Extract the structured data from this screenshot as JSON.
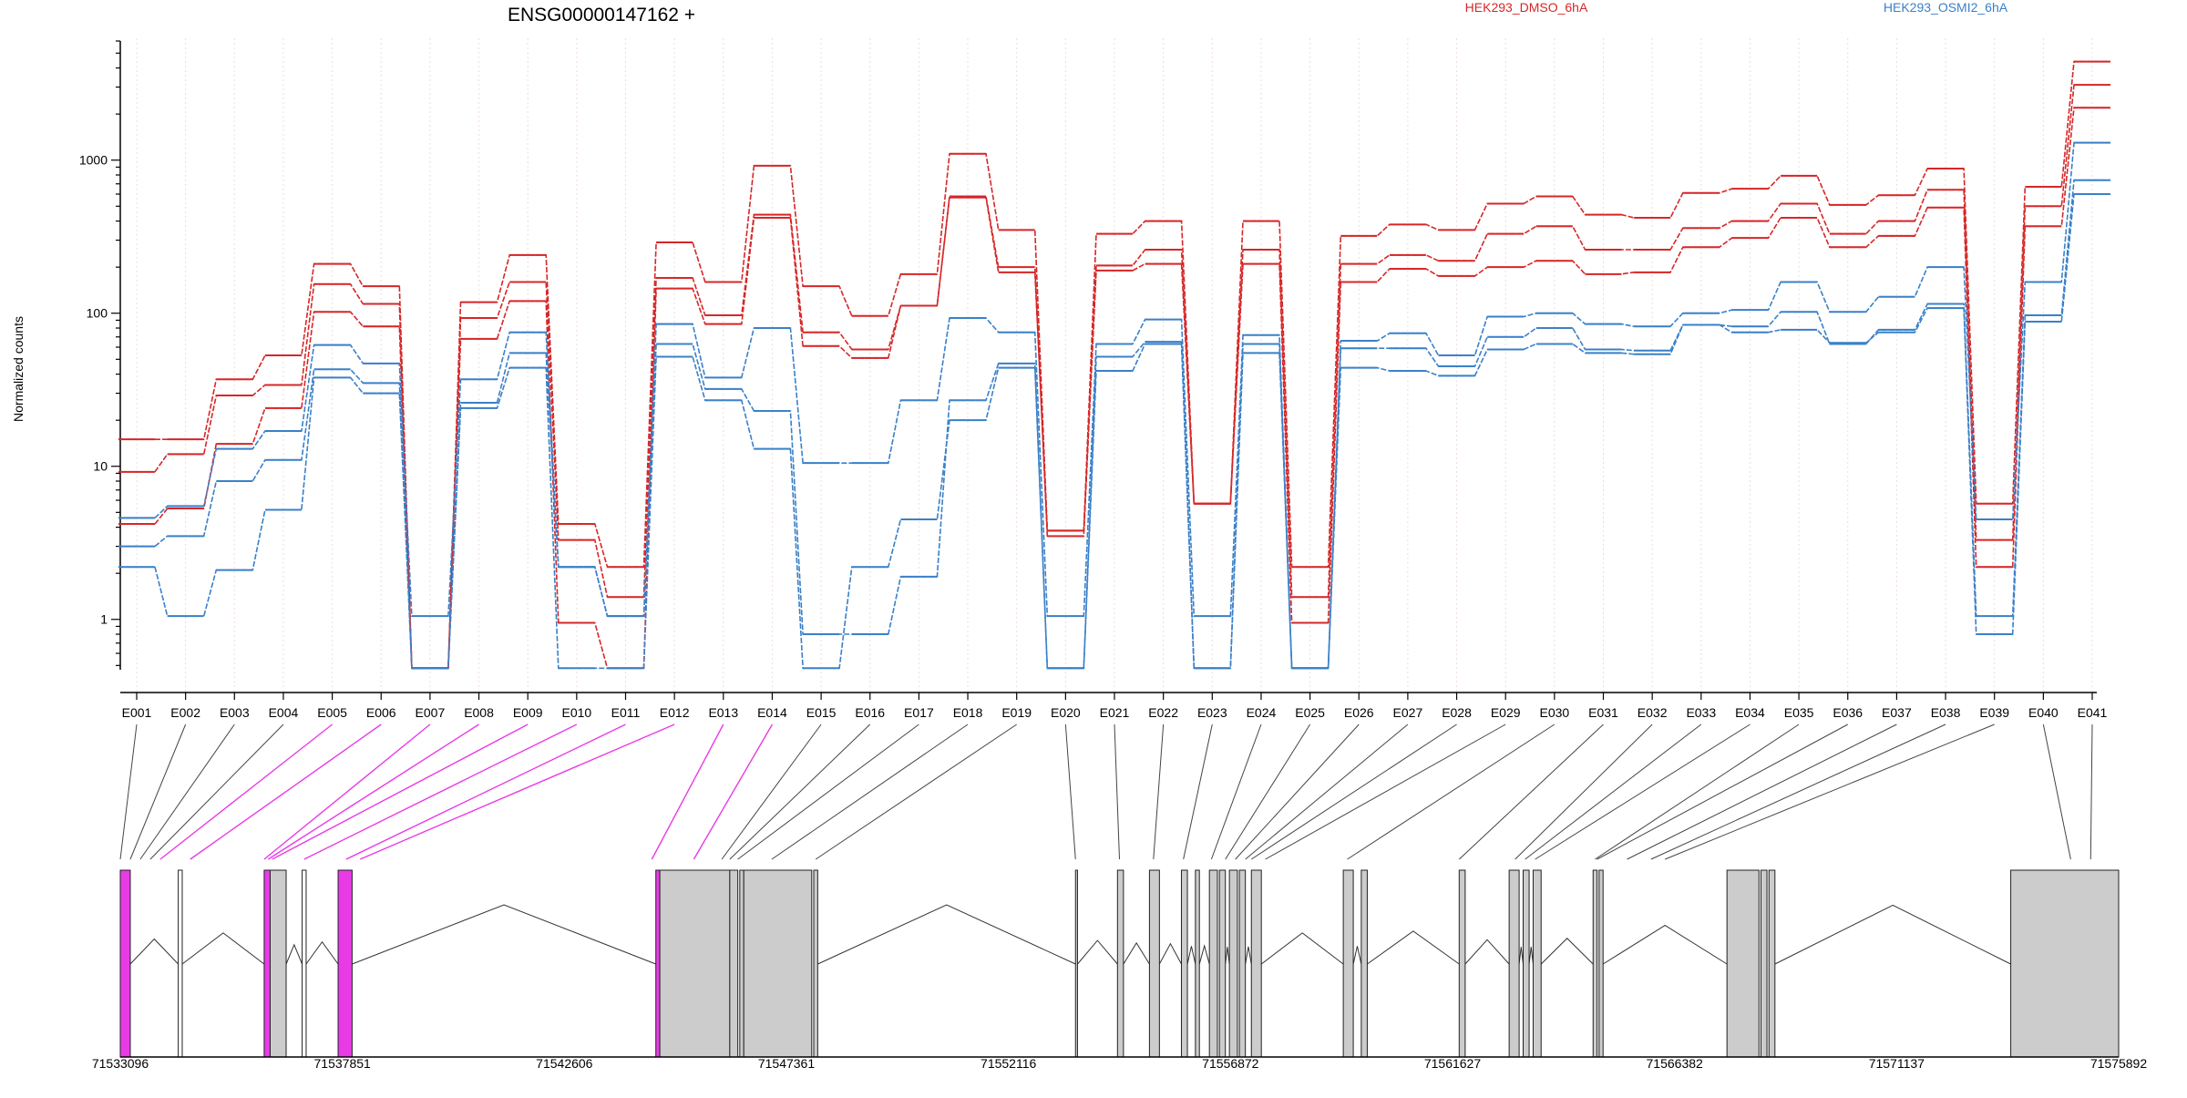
{
  "title": "ENSG00000147162 +",
  "ylabel": "Normalized counts",
  "colors": {
    "dmso": "#d62728",
    "osmi": "#3a80c9",
    "highlight": "#e83be6",
    "exon": "#cccccc"
  },
  "chart_data": {
    "type": "line",
    "title": "ENSG00000147162 +",
    "xlabel": "",
    "ylabel": "Normalized counts",
    "yscale": "log",
    "ylim": [
      0.45,
      6000
    ],
    "y_ticks": [
      "1",
      "10",
      "100",
      "1000"
    ],
    "y_tick_values": [
      1,
      10,
      100,
      1000
    ],
    "grid": "vertical-dotted",
    "legend_position": "top-right",
    "categories": [
      "E001",
      "E002",
      "E003",
      "E004",
      "E005",
      "E006",
      "E007",
      "E008",
      "E009",
      "E010",
      "E011",
      "E012",
      "E013",
      "E014",
      "E015",
      "E016",
      "E017",
      "E018",
      "E019",
      "E020",
      "E021",
      "E022",
      "E023",
      "E024",
      "E025",
      "E026",
      "E027",
      "E028",
      "E029",
      "E030",
      "E031",
      "E032",
      "E033",
      "E034",
      "E035",
      "E036",
      "E037",
      "E038",
      "E039",
      "E040",
      "E041"
    ],
    "series": [
      {
        "name": "HEK293_DMSO_6hA",
        "group": "dmso",
        "values": [
          15,
          15,
          37,
          53,
          210,
          150,
          0.48,
          118,
          240,
          4.2,
          2.2,
          290,
          160,
          920,
          150,
          96,
          180,
          1100,
          350,
          3.8,
          330,
          400,
          5.7,
          400,
          2.2,
          320,
          380,
          350,
          520,
          580,
          440,
          420,
          610,
          650,
          790,
          510,
          590,
          880,
          5.7,
          670,
          4400
        ]
      },
      {
        "name": "HEK293_DMSO_6hA",
        "group": "dmso",
        "values": [
          9.2,
          12,
          29,
          34,
          155,
          115,
          0.48,
          93,
          160,
          3.3,
          1.4,
          170,
          97,
          440,
          75,
          58,
          112,
          580,
          200,
          3.5,
          205,
          260,
          5.7,
          260,
          1.4,
          210,
          240,
          220,
          330,
          370,
          260,
          260,
          360,
          400,
          520,
          330,
          400,
          640,
          3.3,
          500,
          3100
        ]
      },
      {
        "name": "HEK293_DMSO_6hA",
        "group": "dmso",
        "values": [
          4.2,
          5.3,
          14,
          24,
          102,
          82,
          0.48,
          68,
          120,
          0.95,
          0.48,
          145,
          85,
          420,
          61,
          51,
          112,
          570,
          185,
          3.8,
          190,
          210,
          5.7,
          210,
          0.95,
          160,
          195,
          175,
          200,
          220,
          180,
          185,
          270,
          310,
          420,
          270,
          320,
          490,
          2.2,
          370,
          2200
        ]
      },
      {
        "name": "HEK293_OSMI2_6hA",
        "group": "osmi",
        "values": [
          4.6,
          5.5,
          13,
          17,
          62,
          47,
          1.05,
          37,
          75,
          2.2,
          1.05,
          85,
          38,
          80,
          10.5,
          10.5,
          27,
          93,
          75,
          1.05,
          63,
          91,
          1.05,
          72,
          0.48,
          66,
          74,
          53,
          95,
          100,
          85,
          82,
          100,
          105,
          160,
          102,
          128,
          200,
          4.5,
          160,
          1300
        ]
      },
      {
        "name": "HEK293_OSMI2_6hA",
        "group": "osmi",
        "values": [
          3,
          3.5,
          8,
          11,
          43,
          35,
          0.48,
          26,
          55,
          2.2,
          1.05,
          63,
          32,
          23,
          0.8,
          0.8,
          1.9,
          27,
          47,
          0.48,
          52,
          65,
          0.48,
          63,
          0.48,
          59,
          59,
          45,
          70,
          80,
          58,
          57,
          84,
          82,
          102,
          63,
          78,
          115,
          1.05,
          97,
          740
        ]
      },
      {
        "name": "HEK293_OSMI2_6hA",
        "group": "osmi",
        "values": [
          2.2,
          1.05,
          2.1,
          5.2,
          38,
          30,
          0.48,
          24,
          44,
          0.48,
          0.48,
          52,
          27,
          13,
          0.48,
          2.2,
          4.5,
          20,
          44,
          0.48,
          42,
          63,
          0.48,
          55,
          0.48,
          44,
          42,
          39,
          58,
          63,
          55,
          54,
          84,
          75,
          78,
          64,
          75,
          108,
          0.8,
          88,
          600
        ]
      }
    ]
  },
  "genome": {
    "coord_start": 71533096,
    "coord_end": 71575892,
    "coord_labels": [
      "71533096",
      "71537851",
      "71542606",
      "71547361",
      "71552116",
      "71556872",
      "71561627",
      "71566382",
      "71571137",
      "71575892"
    ],
    "exon_mapping": [
      0,
      0.005,
      0.01,
      0.015,
      0.02,
      0.035,
      0.072,
      0.074,
      0.076,
      0.092,
      0.113,
      0.12,
      0.266,
      0.287,
      0.301,
      0.305,
      0.309,
      0.326,
      0.348,
      0.478,
      0.5,
      0.517,
      0.532,
      0.546,
      0.553,
      0.558,
      0.563,
      0.566,
      0.573,
      0.614,
      0.67,
      0.698,
      0.703,
      0.708,
      0.738,
      0.739,
      0.754,
      0.766,
      0.773,
      0.976,
      0.986
    ],
    "highlighted_exons": [
      4,
      5,
      6,
      7,
      8,
      9,
      10,
      11,
      12,
      13
    ],
    "exon_blocks": [
      [
        0,
        0.005,
        "h"
      ],
      [
        0.029,
        0.031,
        "w"
      ],
      [
        0.072,
        0.075,
        "h"
      ],
      [
        0.075,
        0.083,
        "g"
      ],
      [
        0.091,
        0.093,
        "w"
      ],
      [
        0.109,
        0.116,
        "h"
      ],
      [
        0.268,
        0.27,
        "h"
      ],
      [
        0.27,
        0.305,
        "g"
      ],
      [
        0.305,
        0.309,
        "g"
      ],
      [
        0.31,
        0.312,
        "g"
      ],
      [
        0.312,
        0.346,
        "g"
      ],
      [
        0.347,
        0.349,
        "g"
      ],
      [
        0.478,
        0.479,
        "g"
      ],
      [
        0.499,
        0.502,
        "g"
      ],
      [
        0.515,
        0.52,
        "g"
      ],
      [
        0.531,
        0.534,
        "g"
      ],
      [
        0.538,
        0.54,
        "g"
      ],
      [
        0.545,
        0.549,
        "g"
      ],
      [
        0.55,
        0.553,
        "g"
      ],
      [
        0.555,
        0.559,
        "g"
      ],
      [
        0.56,
        0.563,
        "g"
      ],
      [
        0.566,
        0.571,
        "g"
      ],
      [
        0.612,
        0.617,
        "g"
      ],
      [
        0.621,
        0.624,
        "g"
      ],
      [
        0.67,
        0.673,
        "g"
      ],
      [
        0.695,
        0.7,
        "g"
      ],
      [
        0.702,
        0.705,
        "g"
      ],
      [
        0.707,
        0.711,
        "g"
      ],
      [
        0.737,
        0.739,
        "g"
      ],
      [
        0.74,
        0.742,
        "g"
      ],
      [
        0.804,
        0.82,
        "g"
      ],
      [
        0.821,
        0.824,
        "g"
      ],
      [
        0.825,
        0.828,
        "g"
      ],
      [
        0.946,
        1,
        "g"
      ]
    ]
  }
}
